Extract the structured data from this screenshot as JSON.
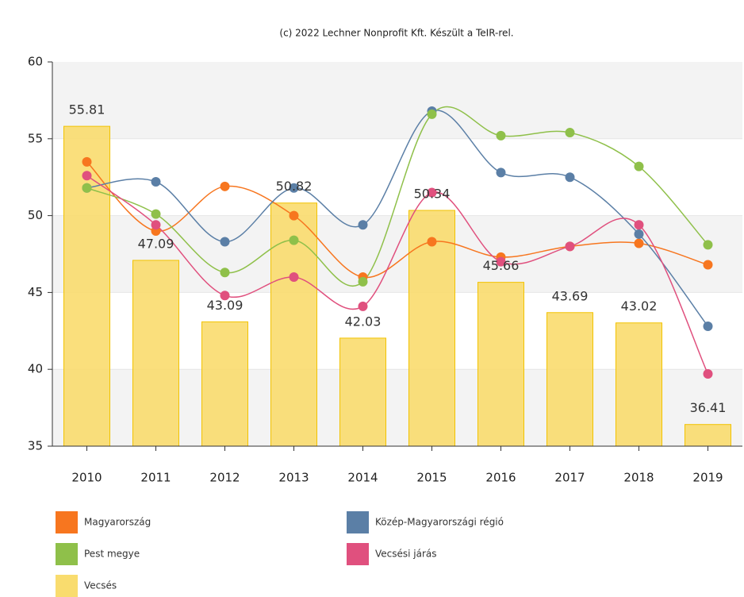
{
  "chart_data": {
    "type": "combo",
    "title": "(c) 2022 Lechner Nonprofit Kft. Készült a TeIR-rel.",
    "categories": [
      "2010",
      "2011",
      "2012",
      "2013",
      "2014",
      "2015",
      "2016",
      "2017",
      "2018",
      "2019"
    ],
    "ylim": [
      35,
      60
    ],
    "yticks": [
      35,
      40,
      45,
      50,
      55,
      60
    ],
    "grid": "bands",
    "smooth": true,
    "series": [
      {
        "name": "Magyarország",
        "type": "line",
        "color": "#f7761f",
        "values": [
          53.5,
          49.0,
          51.9,
          50.0,
          46.0,
          48.3,
          47.3,
          48.0,
          48.2,
          46.8
        ]
      },
      {
        "name": "Közép-Magyarországi régió",
        "type": "line",
        "color": "#5b7fa6",
        "values": [
          51.8,
          52.2,
          48.3,
          51.8,
          49.4,
          56.8,
          52.8,
          52.5,
          48.8,
          42.8
        ]
      },
      {
        "name": "Pest megye",
        "type": "line",
        "color": "#8fc04a",
        "values": [
          51.8,
          50.1,
          46.3,
          48.4,
          45.7,
          56.6,
          55.2,
          55.4,
          53.2,
          48.1
        ]
      },
      {
        "name": "Vecsési járás",
        "type": "line",
        "color": "#e0507e",
        "values": [
          52.6,
          49.4,
          44.8,
          46.0,
          44.1,
          51.5,
          47.0,
          48.0,
          49.4,
          39.7
        ]
      },
      {
        "name": "Vecsés",
        "type": "bar",
        "color": "#f9dc6e",
        "values": [
          55.81,
          47.09,
          43.09,
          50.82,
          42.03,
          50.34,
          45.66,
          43.69,
          43.02,
          36.41
        ]
      }
    ]
  }
}
